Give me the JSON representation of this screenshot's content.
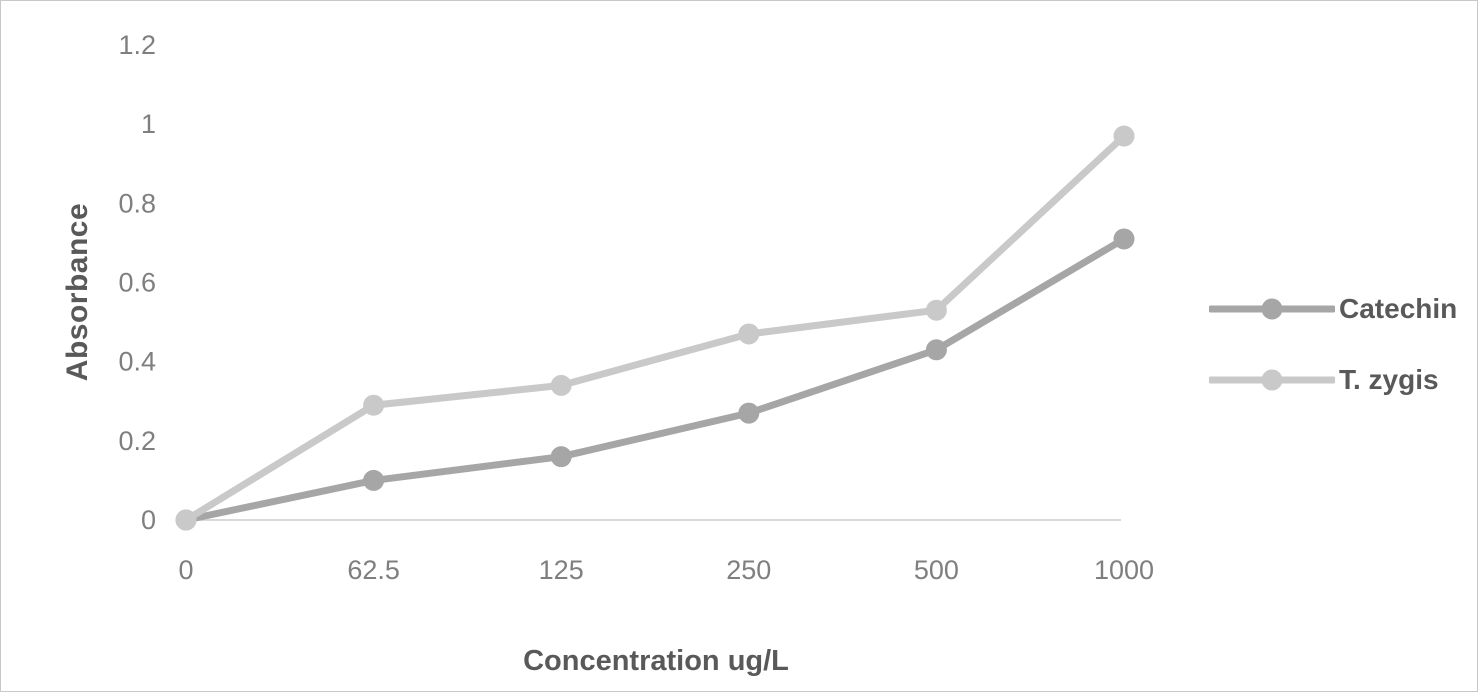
{
  "chart_data": {
    "type": "line",
    "title": "",
    "xlabel": "Concentration ug/L",
    "ylabel": "Absorbance",
    "categories": [
      "0",
      "62.5",
      "125",
      "250",
      "500",
      "1000"
    ],
    "y_tick_labels": [
      "0",
      "0.2",
      "0.4",
      "0.6",
      "0.8",
      "1",
      "1.2"
    ],
    "ylim": [
      0,
      1.2
    ],
    "grid": false,
    "legend_position": "right",
    "series": [
      {
        "name": "Catechin",
        "color": "#a6a6a6",
        "values": [
          0,
          0.1,
          0.16,
          0.27,
          0.43,
          0.71
        ]
      },
      {
        "name": "T. zygis",
        "color": "#c9c9c9",
        "values": [
          0,
          0.29,
          0.34,
          0.47,
          0.53,
          0.97
        ]
      }
    ]
  },
  "colors": {
    "axis_line": "#d9d9d9",
    "tick_text": "#7f7f7f",
    "title_text": "#595959",
    "background": "#ffffff",
    "border": "#c8c8c8"
  }
}
